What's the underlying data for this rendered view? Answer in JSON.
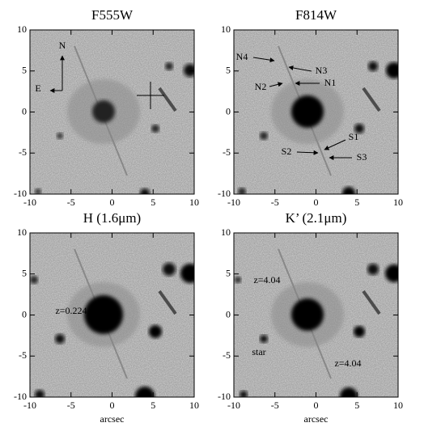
{
  "chart_data": [
    {
      "type": "image",
      "title": "F555W",
      "xlim": [
        -10,
        10
      ],
      "ylim": [
        -10,
        10
      ],
      "xticks": [
        -10,
        -5,
        0,
        5,
        10
      ],
      "yticks": [
        -10,
        -5,
        0,
        5,
        10
      ],
      "annotations": [
        "N",
        "E"
      ]
    },
    {
      "type": "image",
      "title": "F814W",
      "xlim": [
        -10,
        10
      ],
      "ylim": [
        -10,
        10
      ],
      "xticks": [
        -10,
        -5,
        0,
        5,
        10
      ],
      "yticks": [
        -10,
        -5,
        0,
        5,
        10
      ],
      "annotations": [
        "N4",
        "N3",
        "N2",
        "N1",
        "S1",
        "S2",
        "S3"
      ]
    },
    {
      "type": "image",
      "title": "H (1.6μm)",
      "xlabel": "arcsec",
      "xlim": [
        -10,
        10
      ],
      "ylim": [
        -10,
        10
      ],
      "xticks": [
        -10,
        -5,
        0,
        5,
        10
      ],
      "yticks": [
        -10,
        -5,
        0,
        5,
        10
      ],
      "annotations": [
        "z=0.224"
      ]
    },
    {
      "type": "image",
      "title": "K’ (2.1μm)",
      "xlabel": "arcsec",
      "xlim": [
        -10,
        10
      ],
      "ylim": [
        -10,
        10
      ],
      "xticks": [
        -10,
        -5,
        0,
        5,
        10
      ],
      "yticks": [
        -10,
        -5,
        0,
        5,
        10
      ],
      "annotations": [
        "z=4.04",
        "star",
        "z=4.04"
      ]
    }
  ]
}
